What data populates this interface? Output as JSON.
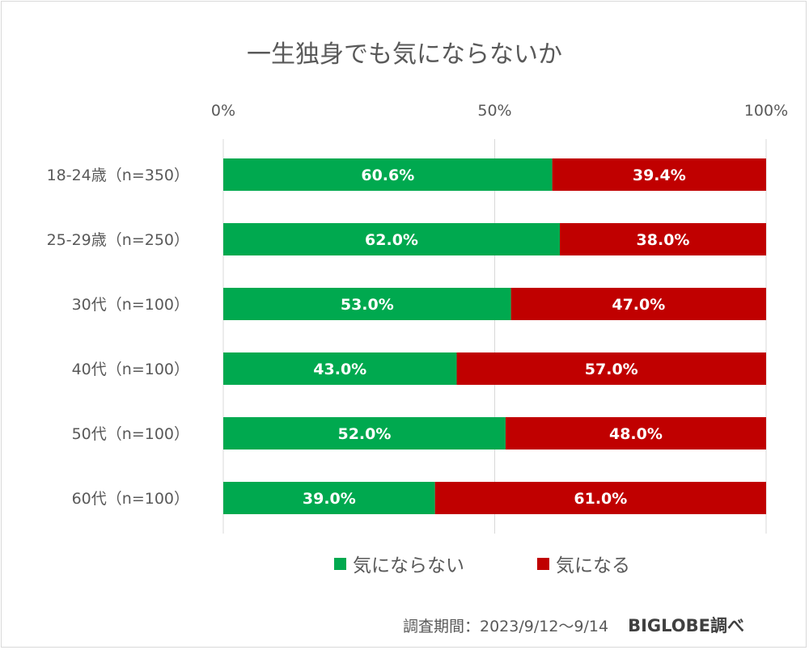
{
  "chart_data": {
    "type": "bar",
    "orientation": "horizontal",
    "stacked": "percent",
    "title": "一生独身でも気にならないか",
    "categories": [
      "18-24歳（n=350）",
      "25-29歳（n=250）",
      "30代（n=100）",
      "40代（n=100）",
      "50代（n=100）",
      "60代（n=100）"
    ],
    "series": [
      {
        "name": "気にならない",
        "color": "#00a94f",
        "values": [
          60.6,
          62.0,
          53.0,
          43.0,
          52.0,
          39.0
        ],
        "labels": [
          "60.6%",
          "62.0%",
          "53.0%",
          "43.0%",
          "52.0%",
          "39.0%"
        ]
      },
      {
        "name": "気になる",
        "color": "#c00000",
        "values": [
          39.4,
          38.0,
          47.0,
          57.0,
          48.0,
          61.0
        ],
        "labels": [
          "39.4%",
          "38.0%",
          "47.0%",
          "57.0%",
          "48.0%",
          "61.0%"
        ]
      }
    ],
    "xlim": [
      0,
      100
    ],
    "xticks": [
      0,
      50,
      100
    ],
    "xtick_labels": [
      "0%",
      "50%",
      "100%"
    ],
    "xaxis_position": "top",
    "grid": true,
    "legend_position": "bottom"
  },
  "footer": {
    "note": "調査期間：2023/9/12〜9/14",
    "brand": "BIGLOBE調べ"
  }
}
